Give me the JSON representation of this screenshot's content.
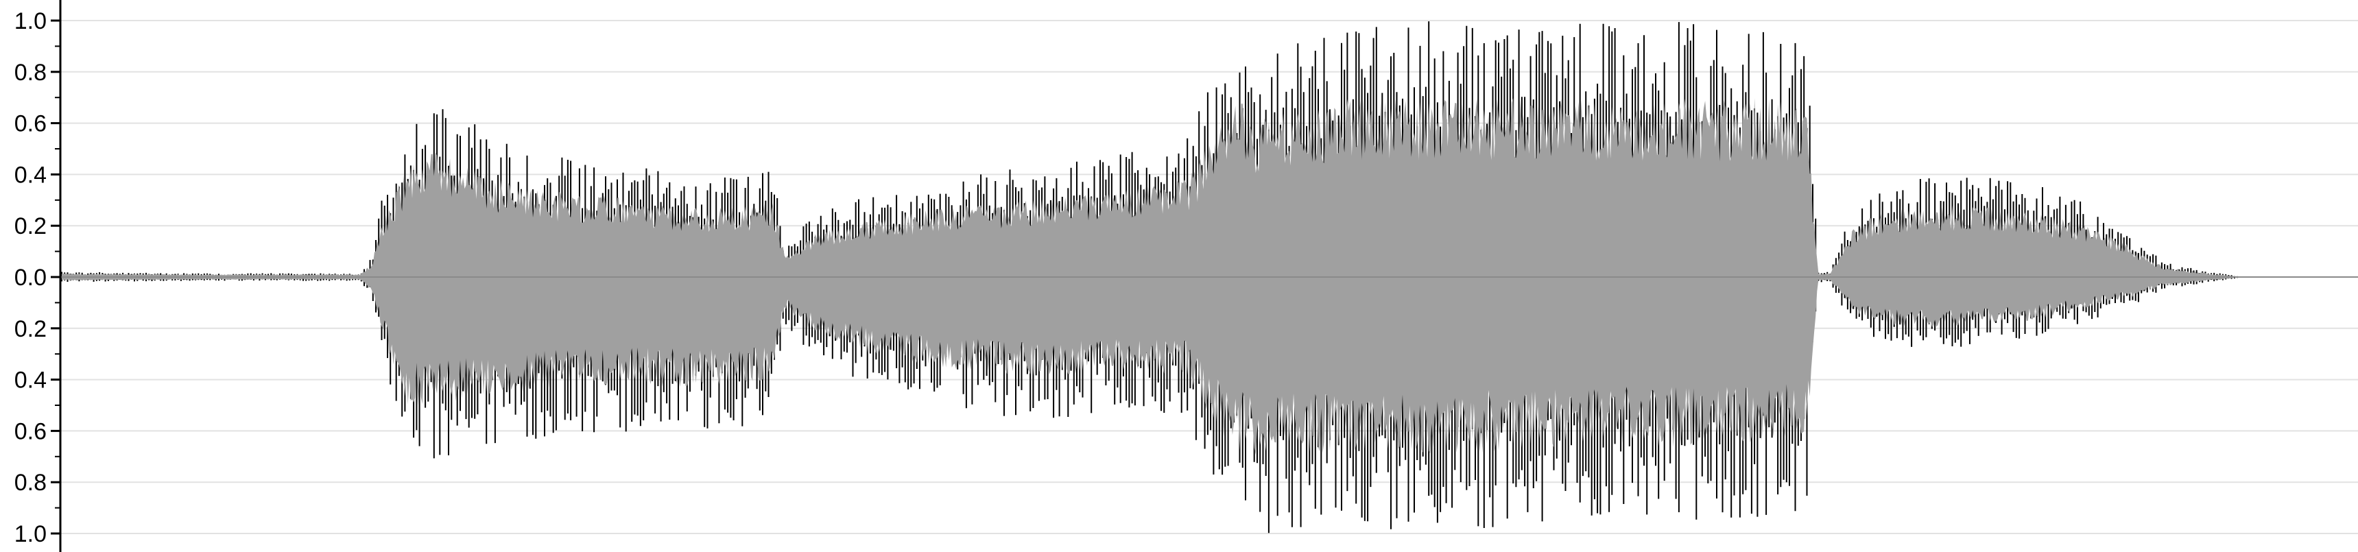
{
  "chart_data": {
    "type": "area",
    "title": "",
    "xlabel": "",
    "ylabel": "",
    "ylim": [
      -1.0,
      1.0
    ],
    "grid": true,
    "y_ticks": [
      {
        "value": 1.0,
        "label": "1.0"
      },
      {
        "value": 0.8,
        "label": "0.8"
      },
      {
        "value": 0.6,
        "label": "0.6"
      },
      {
        "value": 0.4,
        "label": "0.4"
      },
      {
        "value": 0.2,
        "label": "0.2"
      },
      {
        "value": 0.0,
        "label": "0.0"
      },
      {
        "value": -0.2,
        "label": "0.2"
      },
      {
        "value": -0.4,
        "label": "0.4"
      },
      {
        "value": -0.6,
        "label": "0.6"
      },
      {
        "value": -0.8,
        "label": "0.8"
      },
      {
        "value": -1.0,
        "label": "1.0"
      }
    ],
    "colors": {
      "fill": "#a0a0a0",
      "stroke": "#000000",
      "grid": "#e2e2e2",
      "zero_line": "#8a8a8a"
    },
    "series": [
      {
        "x": [
          0.0,
          0.06,
          0.13,
          0.135,
          0.14,
          0.15,
          0.16,
          0.2,
          0.24,
          0.28,
          0.3,
          0.31,
          0.315,
          0.32,
          0.33,
          0.35,
          0.38,
          0.41,
          0.44,
          0.46,
          0.49,
          0.505,
          0.51,
          0.515,
          0.52,
          0.523,
          0.53,
          0.54,
          0.56,
          0.59,
          0.62,
          0.65,
          0.68,
          0.71,
          0.74,
          0.76,
          0.765,
          0.77,
          0.78,
          0.79,
          0.8,
          0.82,
          0.84,
          0.86,
          0.88,
          0.9,
          0.915,
          0.93,
          0.935,
          0.94,
          0.95
        ],
        "positive": [
          0.02,
          0.015,
          0.015,
          0.08,
          0.35,
          0.6,
          0.72,
          0.5,
          0.45,
          0.38,
          0.4,
          0.42,
          0.12,
          0.18,
          0.26,
          0.32,
          0.38,
          0.42,
          0.45,
          0.48,
          0.55,
          0.85,
          0.95,
          1.0,
          0.85,
          0.9,
          0.92,
          0.92,
          1.0,
          1.0,
          1.0,
          1.0,
          1.0,
          1.0,
          1.0,
          0.95,
          0.02,
          0.02,
          0.28,
          0.35,
          0.38,
          0.4,
          0.4,
          0.36,
          0.3,
          0.18,
          0.06,
          0.03,
          0.02,
          0.015,
          0.0
        ],
        "negative": [
          0.02,
          0.015,
          0.015,
          0.08,
          0.35,
          0.75,
          0.72,
          0.65,
          0.6,
          0.62,
          0.62,
          0.55,
          0.18,
          0.25,
          0.32,
          0.42,
          0.5,
          0.55,
          0.55,
          0.52,
          0.55,
          0.9,
          0.95,
          1.0,
          1.0,
          1.0,
          1.0,
          1.0,
          1.0,
          1.0,
          0.98,
          0.95,
          0.95,
          0.95,
          0.95,
          0.9,
          0.02,
          0.02,
          0.2,
          0.25,
          0.28,
          0.28,
          0.26,
          0.24,
          0.18,
          0.12,
          0.05,
          0.03,
          0.02,
          0.015,
          0.0
        ]
      }
    ]
  }
}
